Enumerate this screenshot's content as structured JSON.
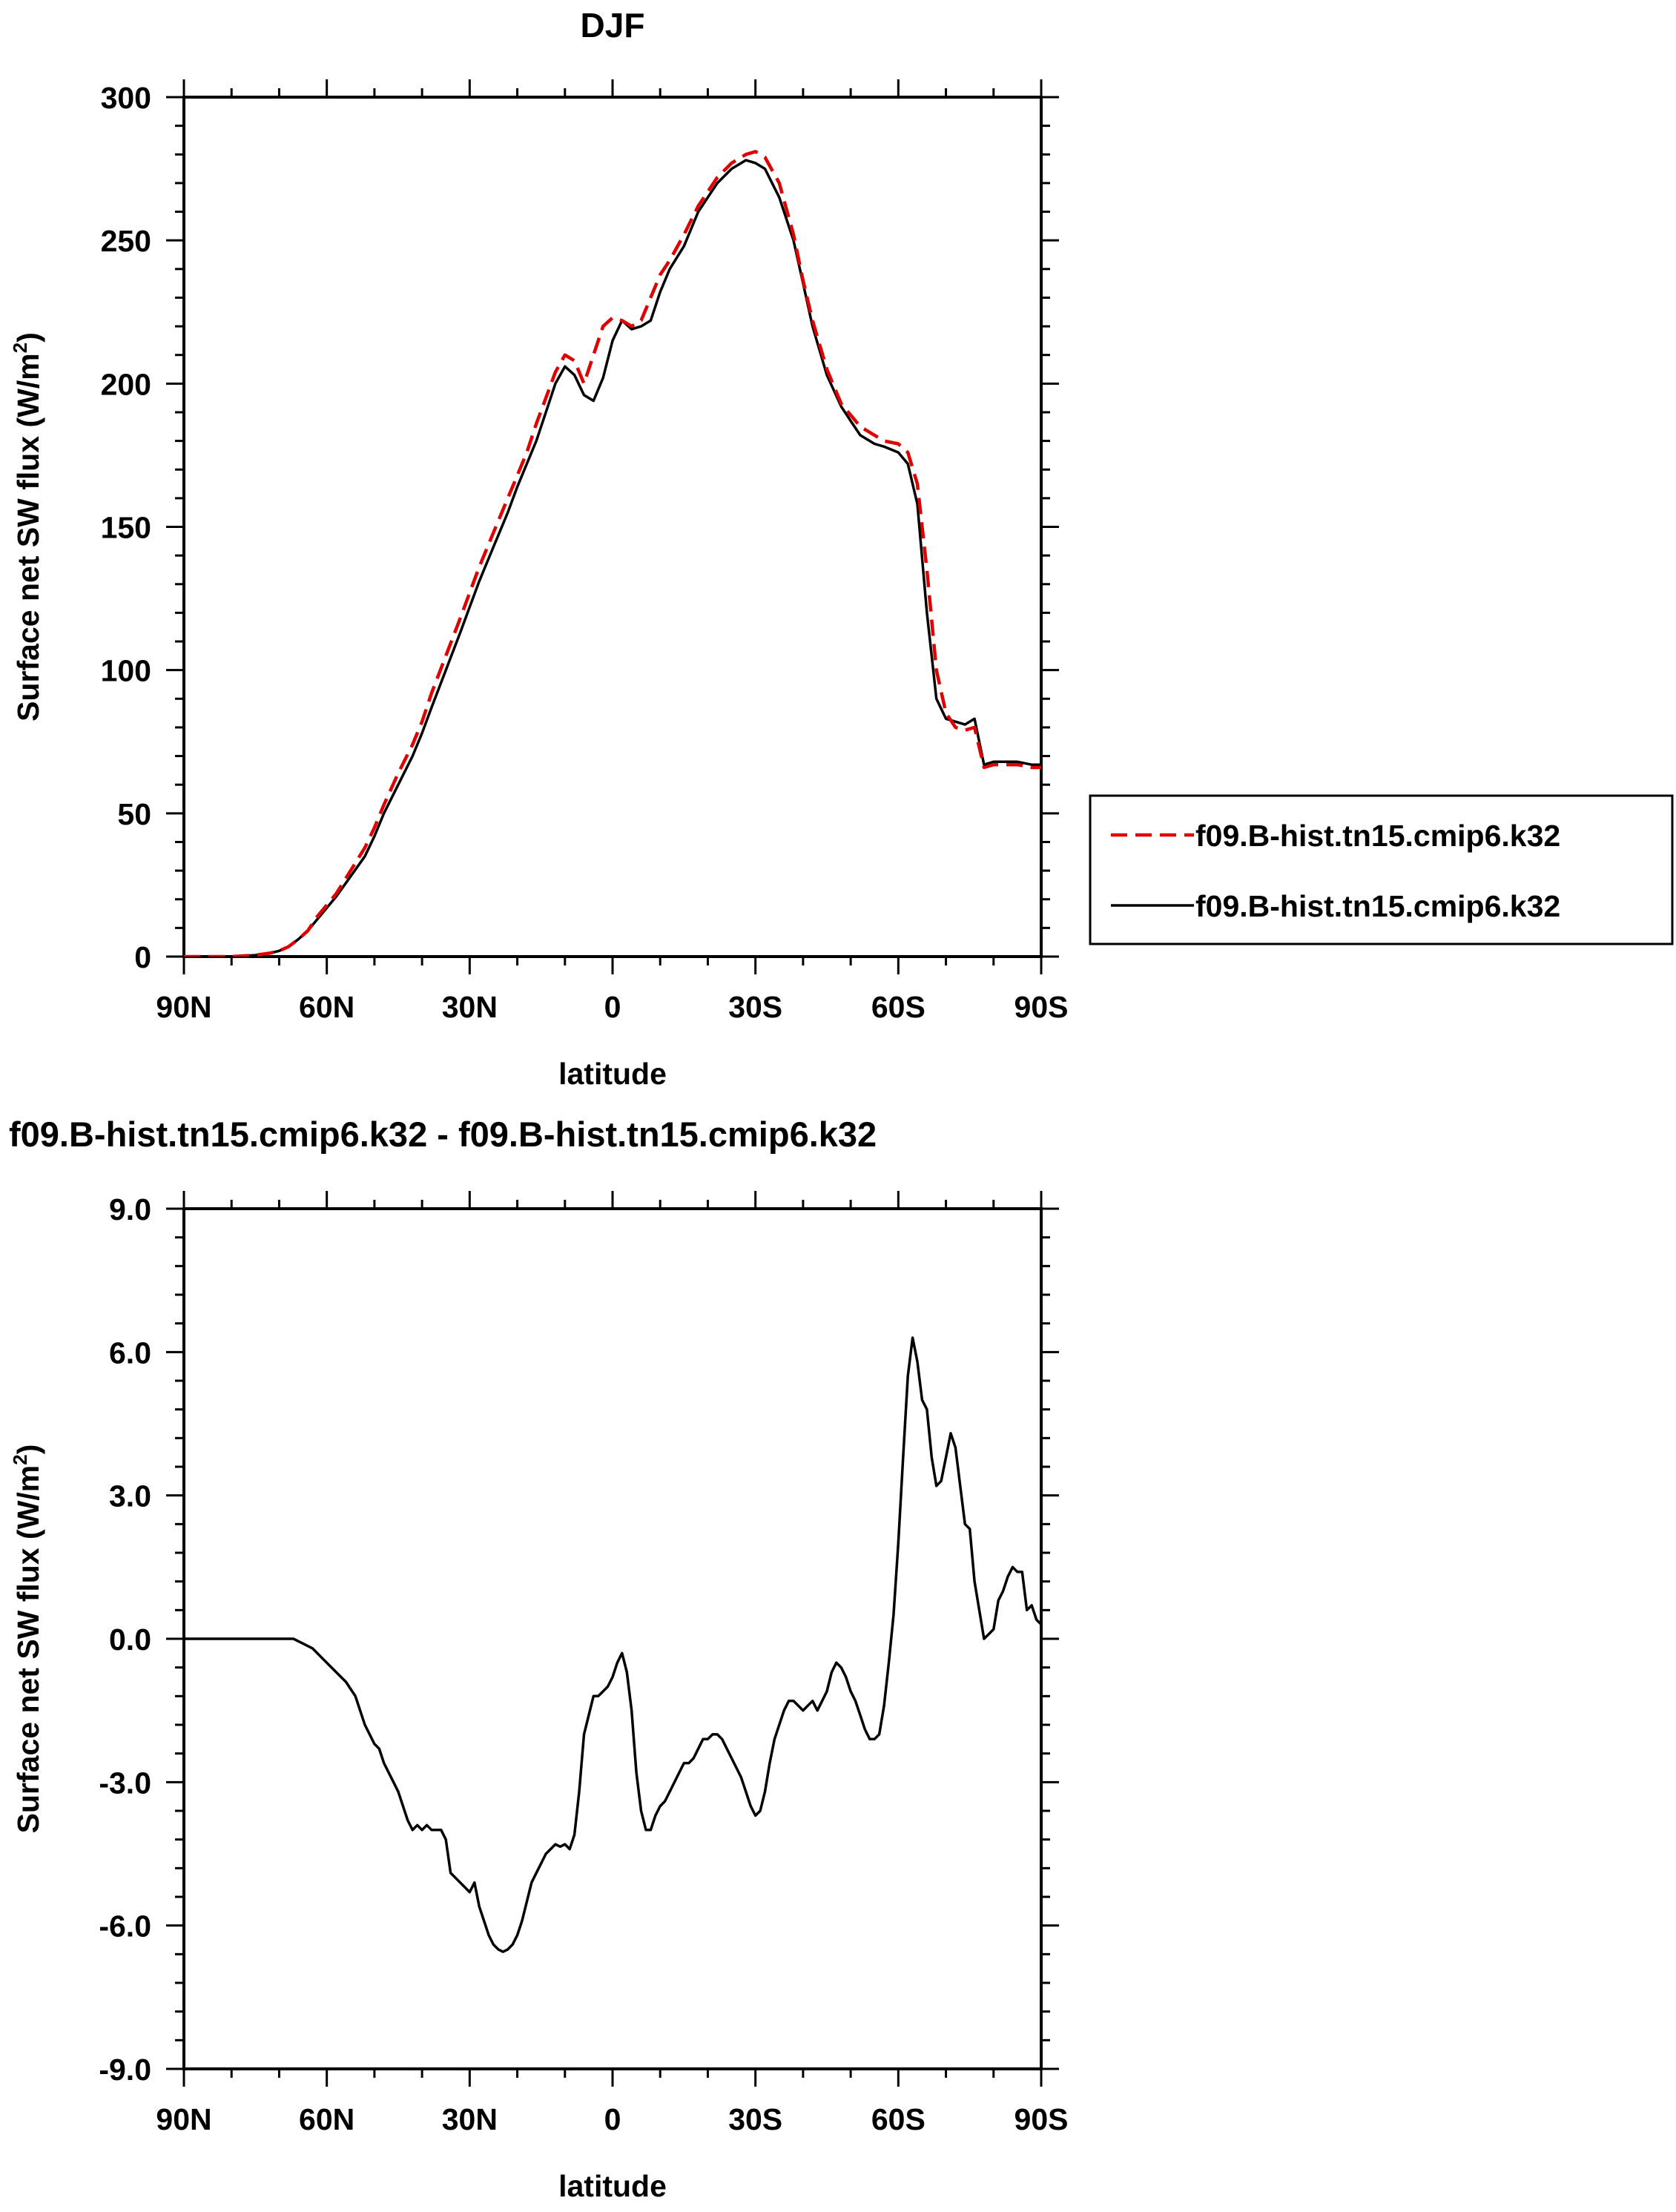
{
  "chart_data": [
    {
      "type": "line",
      "title": "DJF",
      "xlabel": "latitude",
      "ylabel_main": "Surface net SW flux (W/m",
      "ylabel_sup": "2",
      "ylabel_close": ")",
      "xlim": [
        90,
        -90
      ],
      "ylim": [
        0,
        300
      ],
      "x_ticks": [
        {
          "value": 90,
          "label": "90N"
        },
        {
          "value": 60,
          "label": "60N"
        },
        {
          "value": 30,
          "label": "30N"
        },
        {
          "value": 0,
          "label": "0"
        },
        {
          "value": -30,
          "label": "30S"
        },
        {
          "value": -60,
          "label": "60S"
        },
        {
          "value": -90,
          "label": "90S"
        }
      ],
      "y_ticks": [
        {
          "value": 0,
          "label": "0"
        },
        {
          "value": 50,
          "label": "50"
        },
        {
          "value": 100,
          "label": "100"
        },
        {
          "value": 150,
          "label": "150"
        },
        {
          "value": 200,
          "label": "200"
        },
        {
          "value": 250,
          "label": "250"
        },
        {
          "value": 300,
          "label": "300"
        }
      ],
      "legend_position": "right",
      "series": [
        {
          "name": "f09.B-hist.tn15.cmip6.k32",
          "color": "#e00000",
          "style": "dashed",
          "x": [
            90,
            85,
            80,
            75,
            72,
            70,
            68,
            66,
            64,
            62,
            60,
            58,
            55,
            52,
            50,
            48,
            45,
            42,
            40,
            38,
            35,
            32,
            30,
            28,
            25,
            22,
            20,
            18,
            16,
            14,
            12,
            10,
            8,
            6,
            4,
            2,
            0,
            -2,
            -4,
            -6,
            -8,
            -10,
            -12,
            -15,
            -18,
            -20,
            -22,
            -25,
            -28,
            -30,
            -32,
            -35,
            -38,
            -40,
            -42,
            -45,
            -48,
            -50,
            -52,
            -55,
            -57,
            -60,
            -62,
            -64,
            -66,
            -68,
            -70,
            -72,
            -74,
            -76,
            -78,
            -80,
            -82,
            -85,
            -88,
            -90
          ],
          "values": [
            0,
            0,
            0,
            0.5,
            1.2,
            2,
            3.5,
            6,
            9,
            14,
            18,
            22,
            30,
            38,
            45,
            53,
            64,
            74,
            82,
            92,
            105,
            118,
            127,
            136,
            148,
            160,
            168,
            176,
            186,
            195,
            204,
            210,
            208,
            200,
            210,
            220,
            223,
            222,
            220,
            222,
            230,
            238,
            243,
            252,
            262,
            267,
            272,
            277,
            280,
            281,
            279,
            270,
            252,
            236,
            222,
            205,
            193,
            189,
            185,
            182,
            180,
            179,
            176,
            165,
            135,
            100,
            85,
            80,
            79,
            80,
            66,
            67,
            67,
            67,
            66,
            66
          ]
        },
        {
          "name": "f09.B-hist.tn15.cmip6.k32",
          "color": "#000000",
          "style": "solid",
          "x": [
            90,
            85,
            80,
            75,
            72,
            70,
            68,
            66,
            64,
            62,
            60,
            58,
            55,
            52,
            50,
            48,
            45,
            42,
            40,
            38,
            35,
            32,
            30,
            28,
            25,
            22,
            20,
            18,
            16,
            14,
            12,
            10,
            8,
            6,
            4,
            2,
            0,
            -2,
            -4,
            -6,
            -8,
            -10,
            -12,
            -15,
            -18,
            -20,
            -22,
            -25,
            -28,
            -30,
            -32,
            -35,
            -38,
            -40,
            -42,
            -45,
            -48,
            -50,
            -52,
            -55,
            -57,
            -60,
            -62,
            -64,
            -66,
            -68,
            -70,
            -72,
            -74,
            -76,
            -78,
            -80,
            -82,
            -85,
            -88,
            -90
          ],
          "values": [
            0,
            0,
            0,
            0.5,
            1.2,
            2,
            3.5,
            6,
            9,
            13,
            17,
            21,
            28,
            35,
            42,
            50,
            60,
            70,
            78,
            87,
            100,
            113,
            122,
            131,
            143,
            155,
            164,
            172,
            180,
            190,
            200,
            206,
            203,
            196,
            194,
            202,
            215,
            222,
            219,
            220,
            222,
            232,
            240,
            248,
            260,
            265,
            270,
            275,
            278,
            277,
            275,
            265,
            250,
            235,
            220,
            203,
            192,
            187,
            182,
            179,
            178,
            176,
            172,
            158,
            120,
            90,
            83,
            82,
            81,
            83,
            67,
            68,
            68,
            68,
            67,
            67
          ]
        }
      ]
    },
    {
      "type": "line",
      "title": "f09.B-hist.tn15.cmip6.k32 - f09.B-hist.tn15.cmip6.k32",
      "xlabel": "latitude",
      "ylabel_main": "Surface net SW flux (W/m",
      "ylabel_sup": "2",
      "ylabel_close": ")",
      "xlim": [
        90,
        -90
      ],
      "ylim": [
        -9,
        9
      ],
      "x_ticks": [
        {
          "value": 90,
          "label": "90N"
        },
        {
          "value": 60,
          "label": "60N"
        },
        {
          "value": 30,
          "label": "30N"
        },
        {
          "value": 0,
          "label": "0"
        },
        {
          "value": -30,
          "label": "30S"
        },
        {
          "value": -60,
          "label": "60S"
        },
        {
          "value": -90,
          "label": "90S"
        }
      ],
      "y_ticks": [
        {
          "value": -9,
          "label": "-9.0"
        },
        {
          "value": -6,
          "label": "-6.0"
        },
        {
          "value": -3,
          "label": "-3.0"
        },
        {
          "value": 0,
          "label": "0.0"
        },
        {
          "value": 3,
          "label": "3.0"
        },
        {
          "value": 6,
          "label": "6.0"
        },
        {
          "value": 9,
          "label": "9.0"
        }
      ],
      "series": [
        {
          "color": "#000000",
          "style": "solid",
          "x": [
            90,
            85,
            80,
            75,
            72,
            70,
            67,
            65,
            63,
            61,
            59,
            57,
            56,
            54,
            52,
            50,
            49,
            48,
            46,
            45,
            44,
            43,
            42,
            41,
            40,
            39,
            38,
            37,
            36,
            35,
            34,
            33,
            32,
            31,
            30,
            29,
            28,
            27,
            26,
            25,
            24,
            23,
            22,
            21,
            20,
            19,
            18,
            17,
            16,
            15,
            14,
            13,
            12,
            11,
            10,
            9,
            8,
            7,
            6,
            5,
            4,
            3,
            2,
            1,
            0,
            -1,
            -2,
            -3,
            -4,
            -5,
            -6,
            -7,
            -8,
            -9,
            -10,
            -11,
            -12,
            -13,
            -14,
            -15,
            -16,
            -17,
            -18,
            -19,
            -20,
            -21,
            -22,
            -23,
            -24,
            -25,
            -26,
            -27,
            -28,
            -29,
            -30,
            -31,
            -32,
            -33,
            -34,
            -35,
            -36,
            -37,
            -38,
            -39,
            -40,
            -41,
            -42,
            -43,
            -44,
            -45,
            -46,
            -47,
            -48,
            -49,
            -50,
            -51,
            -52,
            -53,
            -54,
            -55,
            -56,
            -57,
            -58,
            -59,
            -60,
            -61,
            -62,
            -63,
            -64,
            -65,
            -66,
            -67,
            -68,
            -69,
            -70,
            -71,
            -72,
            -73,
            -74,
            -75,
            -76,
            -77,
            -78,
            -79,
            -80,
            -81,
            -82,
            -83,
            -84,
            -85,
            -86,
            -87,
            -88,
            -89,
            -90
          ],
          "values": [
            0,
            0,
            0,
            0,
            0,
            0,
            0,
            -0.1,
            -0.2,
            -0.4,
            -0.6,
            -0.8,
            -0.9,
            -1.2,
            -1.8,
            -2.2,
            -2.3,
            -2.6,
            -3.0,
            -3.2,
            -3.5,
            -3.8,
            -4.0,
            -3.9,
            -4.0,
            -3.9,
            -4.0,
            -4.0,
            -4.0,
            -4.2,
            -4.9,
            -5.0,
            -5.1,
            -5.2,
            -5.3,
            -5.1,
            -5.6,
            -5.9,
            -6.2,
            -6.4,
            -6.5,
            -6.55,
            -6.5,
            -6.4,
            -6.2,
            -5.9,
            -5.5,
            -5.1,
            -4.9,
            -4.7,
            -4.5,
            -4.4,
            -4.3,
            -4.35,
            -4.3,
            -4.4,
            -4.1,
            -3.2,
            -2.0,
            -1.6,
            -1.2,
            -1.2,
            -1.1,
            -1.0,
            -0.8,
            -0.5,
            -0.3,
            -0.7,
            -1.5,
            -2.8,
            -3.6,
            -4.0,
            -4.0,
            -3.7,
            -3.5,
            -3.4,
            -3.2,
            -3.0,
            -2.8,
            -2.6,
            -2.6,
            -2.5,
            -2.3,
            -2.1,
            -2.1,
            -2.0,
            -2.0,
            -2.1,
            -2.3,
            -2.5,
            -2.7,
            -2.9,
            -3.2,
            -3.5,
            -3.7,
            -3.6,
            -3.2,
            -2.6,
            -2.1,
            -1.8,
            -1.5,
            -1.3,
            -1.3,
            -1.4,
            -1.5,
            -1.4,
            -1.3,
            -1.5,
            -1.3,
            -1.1,
            -0.7,
            -0.5,
            -0.6,
            -0.8,
            -1.1,
            -1.3,
            -1.6,
            -1.9,
            -2.1,
            -2.1,
            -2.0,
            -1.4,
            -0.5,
            0.5,
            2.0,
            3.8,
            5.5,
            6.3,
            5.8,
            5.0,
            4.8,
            3.8,
            3.2,
            3.3,
            3.8,
            4.3,
            4.0,
            3.2,
            2.4,
            2.3,
            1.2,
            0.6,
            0.0,
            0.1,
            0.2,
            0.8,
            1.0,
            1.3,
            1.5,
            1.4,
            1.4,
            0.6,
            0.7,
            0.4,
            0.3
          ]
        }
      ]
    }
  ]
}
